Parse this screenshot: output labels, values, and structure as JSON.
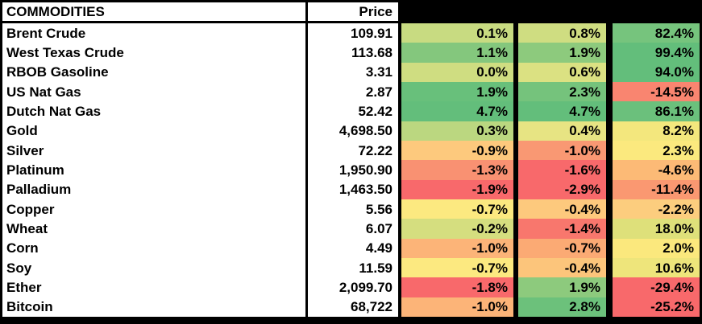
{
  "table": {
    "header": {
      "commodities_label": "COMMODITIES",
      "price_label": "Price",
      "pct_header_labels": [
        "",
        "",
        ""
      ]
    },
    "colors": {
      "frame": "#000000",
      "cell_bg": "#FFFFFF",
      "text": "#000000",
      "scale_min_red": "#F8696B",
      "scale_mid_yellow": "#FFEB84",
      "scale_max_green": "#63BE7B"
    },
    "rows": [
      {
        "name": "Brent Crude",
        "price": "109.91",
        "pcts": [
          {
            "text": "0.1%",
            "bg": "#C8DB81"
          },
          {
            "text": "0.8%",
            "bg": "#CFDD81"
          },
          {
            "text": "82.4%",
            "bg": "#76C47D"
          }
        ]
      },
      {
        "name": "West Texas Crude",
        "price": "113.68",
        "pcts": [
          {
            "text": "1.1%",
            "bg": "#84C77D"
          },
          {
            "text": "1.9%",
            "bg": "#8DCA7D"
          },
          {
            "text": "99.4%",
            "bg": "#63BE7B"
          }
        ]
      },
      {
        "name": "RBOB Gasoline",
        "price": "3.31",
        "pcts": [
          {
            "text": "0.0%",
            "bg": "#CFDD81"
          },
          {
            "text": "0.6%",
            "bg": "#DBE182"
          },
          {
            "text": "94.0%",
            "bg": "#63BE7B"
          }
        ]
      },
      {
        "name": "US Nat Gas",
        "price": "2.87",
        "pcts": [
          {
            "text": "1.9%",
            "bg": "#68C07B"
          },
          {
            "text": "2.3%",
            "bg": "#75C37C"
          },
          {
            "text": "-14.5%",
            "bg": "#F98570"
          }
        ]
      },
      {
        "name": "Dutch Nat Gas",
        "price": "52.42",
        "pcts": [
          {
            "text": "4.7%",
            "bg": "#63BE7B"
          },
          {
            "text": "4.7%",
            "bg": "#63BE7B"
          },
          {
            "text": "86.1%",
            "bg": "#6BC07C"
          }
        ]
      },
      {
        "name": "Gold",
        "price": "4,698.50",
        "pcts": [
          {
            "text": "0.3%",
            "bg": "#BBD780"
          },
          {
            "text": "0.4%",
            "bg": "#E7E483"
          },
          {
            "text": "8.2%",
            "bg": "#F3E77D"
          }
        ]
      },
      {
        "name": "Silver",
        "price": "72.22",
        "pcts": [
          {
            "text": "-0.9%",
            "bg": "#FDC97D"
          },
          {
            "text": "-1.0%",
            "bg": "#F99873"
          },
          {
            "text": "2.3%",
            "bg": "#FBE97E"
          }
        ]
      },
      {
        "name": "Platinum",
        "price": "1,950.90",
        "pcts": [
          {
            "text": "-1.3%",
            "bg": "#F99172"
          },
          {
            "text": "-1.6%",
            "bg": "#F8696B"
          },
          {
            "text": "-4.6%",
            "bg": "#FCBA76"
          }
        ]
      },
      {
        "name": "Palladium",
        "price": "1,463.50",
        "pcts": [
          {
            "text": "-1.9%",
            "bg": "#F8696B"
          },
          {
            "text": "-2.9%",
            "bg": "#F8696B"
          },
          {
            "text": "-11.4%",
            "bg": "#FA9871"
          }
        ]
      },
      {
        "name": "Copper",
        "price": "5.56",
        "pcts": [
          {
            "text": "-0.7%",
            "bg": "#FCE980"
          },
          {
            "text": "-0.4%",
            "bg": "#FDC97D"
          },
          {
            "text": "-2.2%",
            "bg": "#FCCD7E"
          }
        ]
      },
      {
        "name": "Wheat",
        "price": "6.07",
        "pcts": [
          {
            "text": "-0.2%",
            "bg": "#D5DE7F"
          },
          {
            "text": "-1.4%",
            "bg": "#F8776D"
          },
          {
            "text": "18.0%",
            "bg": "#DEE07A"
          }
        ]
      },
      {
        "name": "Corn",
        "price": "4.49",
        "pcts": [
          {
            "text": "-1.0%",
            "bg": "#FCB478"
          },
          {
            "text": "-0.7%",
            "bg": "#FBAA74"
          },
          {
            "text": "2.0%",
            "bg": "#FBE87D"
          }
        ]
      },
      {
        "name": "Soy",
        "price": "11.59",
        "pcts": [
          {
            "text": "-0.7%",
            "bg": "#FCE980"
          },
          {
            "text": "-0.4%",
            "bg": "#FCC57B"
          },
          {
            "text": "10.6%",
            "bg": "#EEE57B"
          }
        ]
      },
      {
        "name": "Ether",
        "price": "2,099.70",
        "pcts": [
          {
            "text": "-1.8%",
            "bg": "#F8696B"
          },
          {
            "text": "1.9%",
            "bg": "#8DCA7D"
          },
          {
            "text": "-29.4%",
            "bg": "#F8696B"
          }
        ]
      },
      {
        "name": "Bitcoin",
        "price": "68,722",
        "pcts": [
          {
            "text": "-1.0%",
            "bg": "#FCB478"
          },
          {
            "text": "2.8%",
            "bg": "#6CC17B"
          },
          {
            "text": "-25.2%",
            "bg": "#F8696B"
          }
        ]
      }
    ]
  },
  "chart_data": {
    "type": "table",
    "title": "COMMODITIES",
    "columns": [
      "COMMODITIES",
      "Price",
      "",
      "",
      ""
    ],
    "notes": "three unlabeled percent-change columns with red-yellow-green heatmap shading",
    "rows": [
      {
        "name": "Brent Crude",
        "price": 109.91,
        "pct_changes": [
          0.1,
          0.8,
          82.4
        ]
      },
      {
        "name": "West Texas Crude",
        "price": 113.68,
        "pct_changes": [
          1.1,
          1.9,
          99.4
        ]
      },
      {
        "name": "RBOB Gasoline",
        "price": 3.31,
        "pct_changes": [
          0.0,
          0.6,
          94.0
        ]
      },
      {
        "name": "US Nat Gas",
        "price": 2.87,
        "pct_changes": [
          1.9,
          2.3,
          -14.5
        ]
      },
      {
        "name": "Dutch Nat Gas",
        "price": 52.42,
        "pct_changes": [
          4.7,
          4.7,
          86.1
        ]
      },
      {
        "name": "Gold",
        "price": 4698.5,
        "pct_changes": [
          0.3,
          0.4,
          8.2
        ]
      },
      {
        "name": "Silver",
        "price": 72.22,
        "pct_changes": [
          -0.9,
          -1.0,
          2.3
        ]
      },
      {
        "name": "Platinum",
        "price": 1950.9,
        "pct_changes": [
          -1.3,
          -1.6,
          -4.6
        ]
      },
      {
        "name": "Palladium",
        "price": 1463.5,
        "pct_changes": [
          -1.9,
          -2.9,
          -11.4
        ]
      },
      {
        "name": "Copper",
        "price": 5.56,
        "pct_changes": [
          -0.7,
          -0.4,
          -2.2
        ]
      },
      {
        "name": "Wheat",
        "price": 6.07,
        "pct_changes": [
          -0.2,
          -1.4,
          18.0
        ]
      },
      {
        "name": "Corn",
        "price": 4.49,
        "pct_changes": [
          -1.0,
          -0.7,
          2.0
        ]
      },
      {
        "name": "Soy",
        "price": 11.59,
        "pct_changes": [
          -0.7,
          -0.4,
          10.6
        ]
      },
      {
        "name": "Ether",
        "price": 2099.7,
        "pct_changes": [
          -1.8,
          1.9,
          -29.4
        ]
      },
      {
        "name": "Bitcoin",
        "price": 68722,
        "pct_changes": [
          -1.0,
          2.8,
          -25.2
        ]
      }
    ],
    "colorscale": {
      "min": "#F8696B",
      "mid": "#FFEB84",
      "max": "#63BE7B"
    },
    "legend_position": "none",
    "grid": "black frame and column dividers only"
  }
}
